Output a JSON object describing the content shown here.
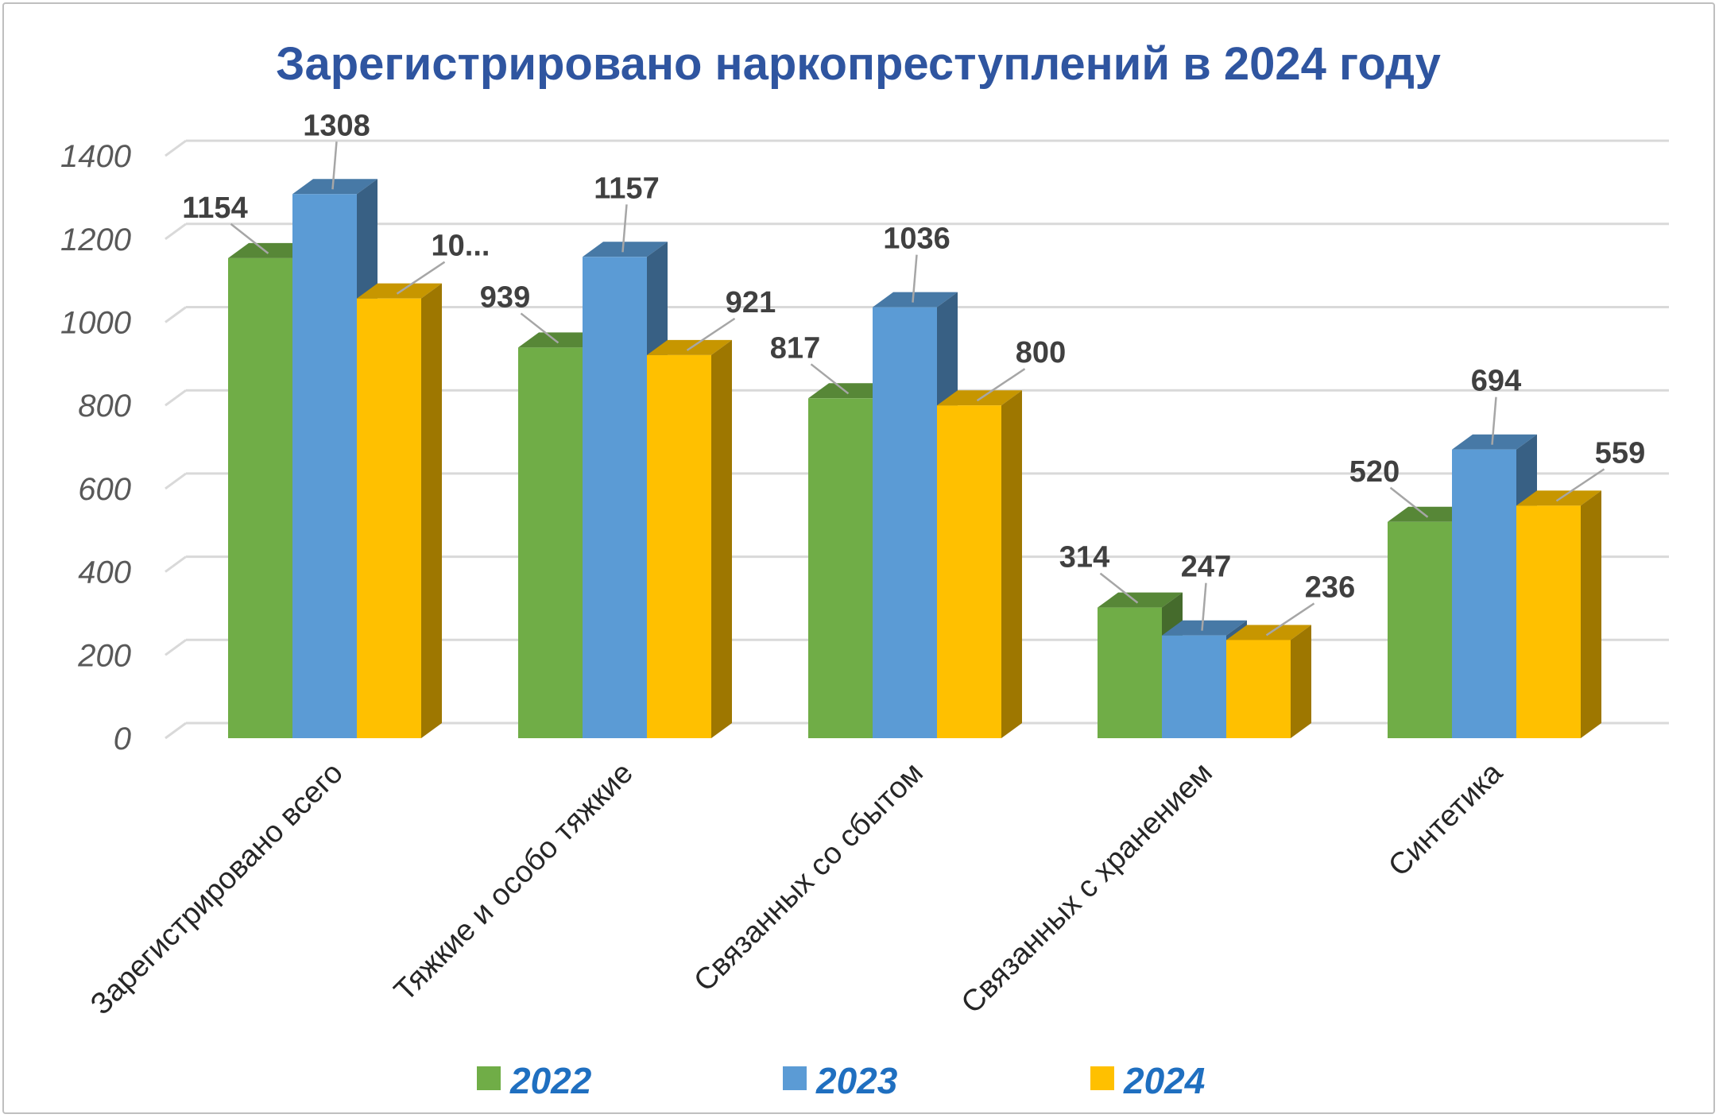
{
  "chart_data": {
    "type": "bar",
    "title": "Зарегистрировано наркопреступлений в 2024 году",
    "categories": [
      "Зарегистрировано всего",
      "Тяжкие и особо тяжкие",
      "Связанных со сбытом",
      "Связанных с хранением",
      "Синтетика"
    ],
    "series": [
      {
        "name": "2022",
        "color": "#70ad47",
        "values": [
          1154,
          939,
          817,
          314,
          520
        ],
        "labels": [
          "1154",
          "939",
          "817",
          "314",
          "520"
        ]
      },
      {
        "name": "2023",
        "color": "#5b9bd5",
        "values": [
          1308,
          1157,
          1036,
          247,
          694
        ],
        "labels": [
          "1308",
          "1157",
          "1036",
          "247",
          "694"
        ]
      },
      {
        "name": "2024",
        "color": "#ffc000",
        "values": [
          1057,
          921,
          800,
          236,
          559
        ],
        "labels": [
          "10...",
          "921",
          "800",
          "236",
          "559"
        ]
      }
    ],
    "y_ticks": [
      "0",
      "200",
      "400",
      "600",
      "800",
      "1000",
      "1200",
      "1400"
    ],
    "ylim": [
      0,
      1400
    ],
    "xlabel": "",
    "ylabel": "",
    "grid": true,
    "legend": "bottom",
    "style": "3d-clustered-column"
  }
}
